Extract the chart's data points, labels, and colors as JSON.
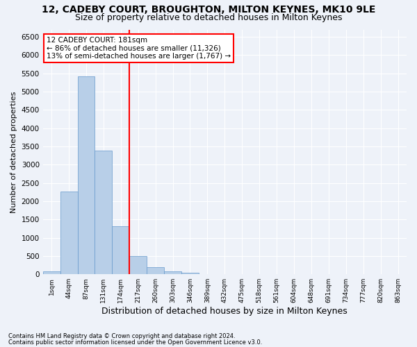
{
  "title1": "12, CADEBY COURT, BROUGHTON, MILTON KEYNES, MK10 9LE",
  "title2": "Size of property relative to detached houses in Milton Keynes",
  "xlabel": "Distribution of detached houses by size in Milton Keynes",
  "ylabel": "Number of detached properties",
  "bin_labels": [
    "1sqm",
    "44sqm",
    "87sqm",
    "131sqm",
    "174sqm",
    "217sqm",
    "260sqm",
    "303sqm",
    "346sqm",
    "389sqm",
    "432sqm",
    "475sqm",
    "518sqm",
    "561sqm",
    "604sqm",
    "648sqm",
    "691sqm",
    "734sqm",
    "777sqm",
    "820sqm",
    "863sqm"
  ],
  "bar_heights": [
    75,
    2270,
    5420,
    3390,
    1310,
    490,
    185,
    80,
    40,
    0,
    0,
    0,
    0,
    0,
    0,
    0,
    0,
    0,
    0,
    0,
    0
  ],
  "bar_color": "#b8cfe8",
  "bar_edge_color": "#6699cc",
  "vline_color": "red",
  "annotation_text": "12 CADEBY COURT: 181sqm\n← 86% of detached houses are smaller (11,326)\n13% of semi-detached houses are larger (1,767) →",
  "annotation_box_color": "white",
  "annotation_box_edge_color": "red",
  "ylim": [
    0,
    6700
  ],
  "yticks": [
    0,
    500,
    1000,
    1500,
    2000,
    2500,
    3000,
    3500,
    4000,
    4500,
    5000,
    5500,
    6000,
    6500
  ],
  "footer1": "Contains HM Land Registry data © Crown copyright and database right 2024.",
  "footer2": "Contains public sector information licensed under the Open Government Licence v3.0.",
  "bg_color": "#eef2f9",
  "plot_bg_color": "#eef2f9",
  "grid_color": "white",
  "title1_fontsize": 10,
  "title2_fontsize": 9,
  "xlabel_fontsize": 9,
  "ylabel_fontsize": 8
}
